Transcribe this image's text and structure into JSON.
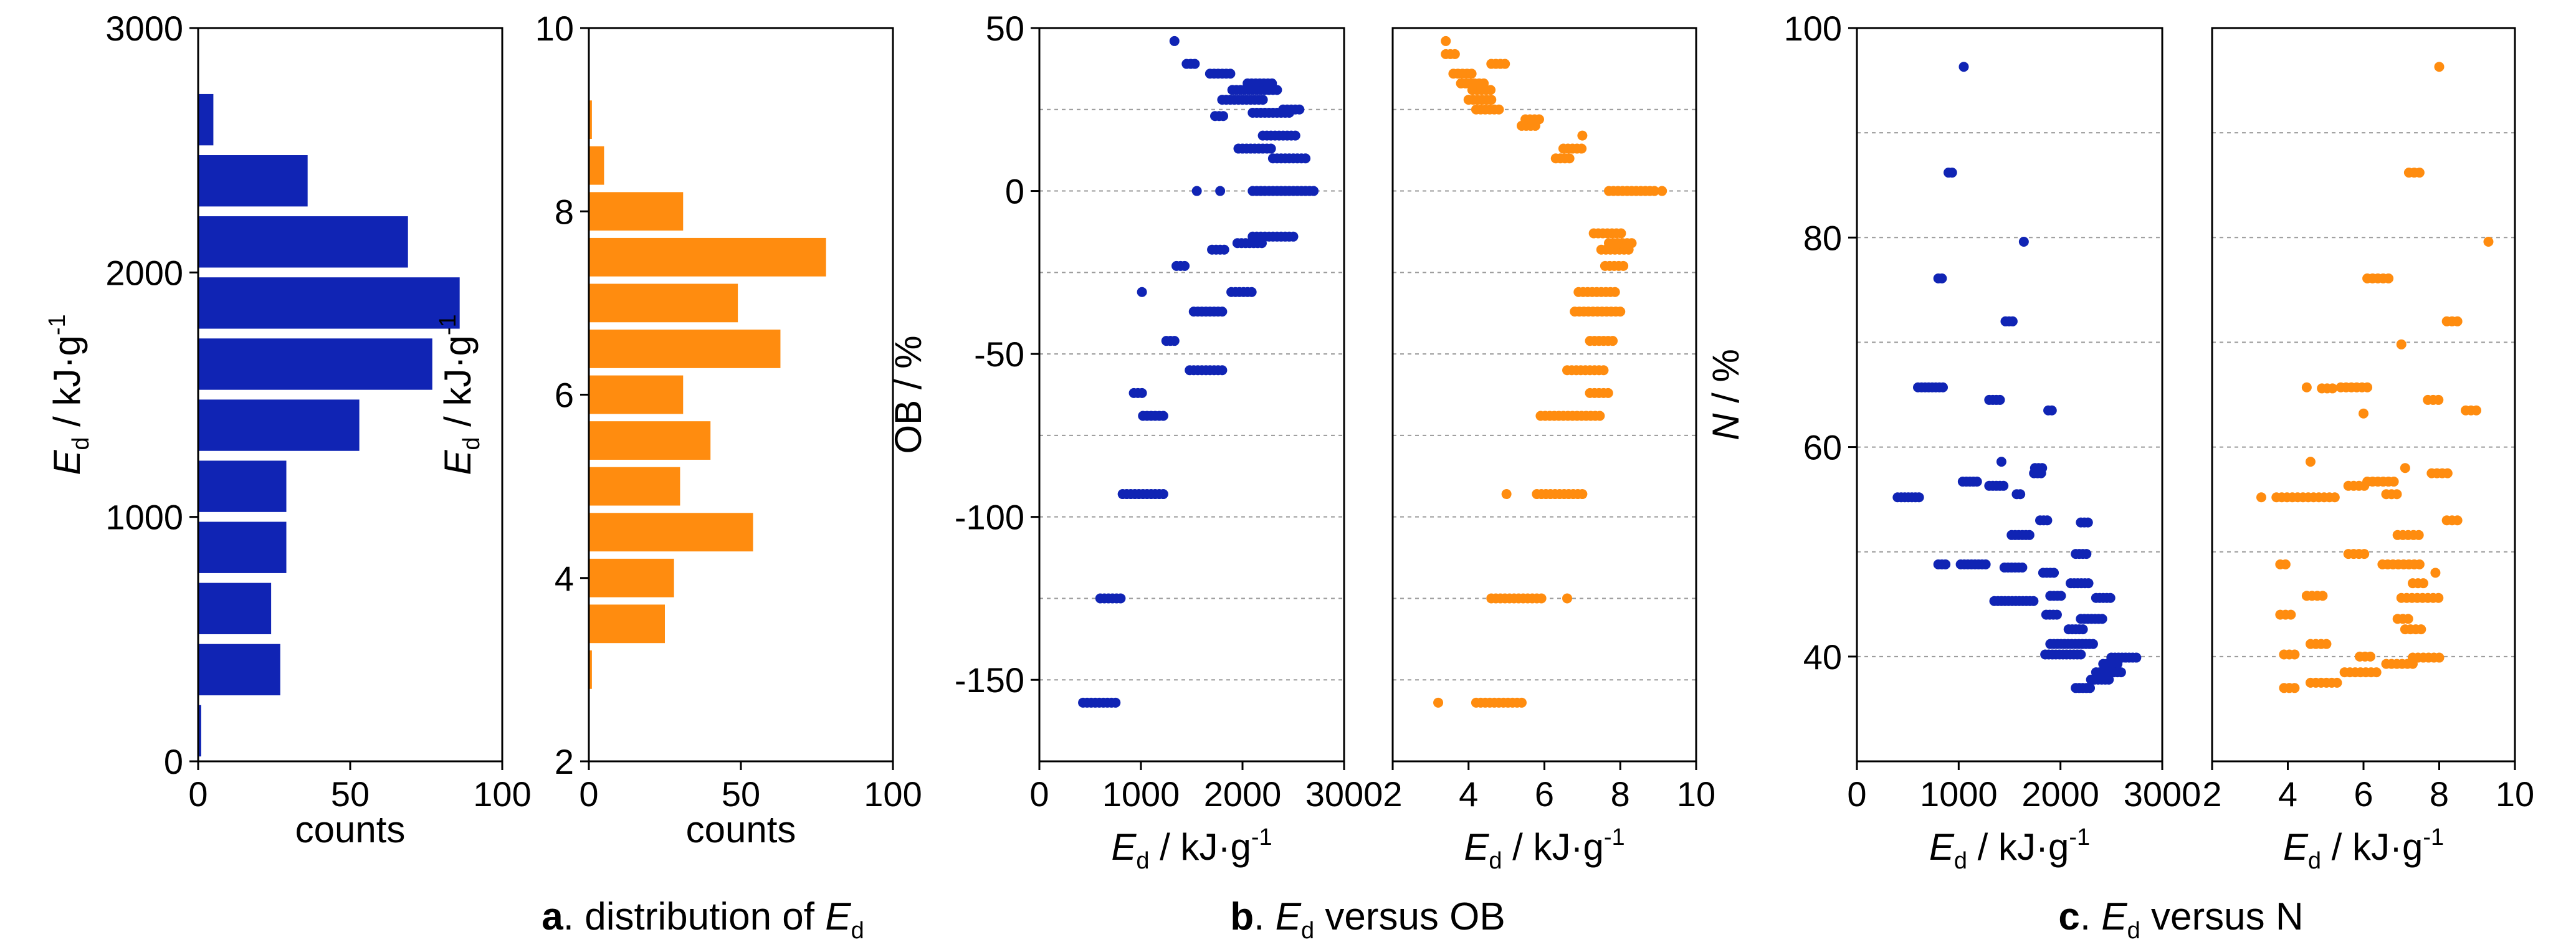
{
  "colors": {
    "blue": "#1024b4",
    "orange": "#ff8c0f"
  },
  "captions": [
    {
      "letter": "a",
      "text": ". distribution of ",
      "sym": "E",
      "sub": "d",
      "tail": ""
    },
    {
      "letter": "b",
      "text": ". ",
      "sym": "E",
      "sub": "d",
      "tail": " versus OB"
    },
    {
      "letter": "c",
      "text": ". ",
      "sym": "E",
      "sub": "d",
      "tail": " versus N"
    }
  ],
  "chart_data": [
    {
      "id": "a1",
      "type": "bar",
      "orientation": "horizontal",
      "color": "blue",
      "ylim": [
        0,
        3000
      ],
      "yticks": [
        "0",
        "1000",
        "2000",
        "3000"
      ],
      "yticks_v": [
        0,
        1000,
        2000,
        3000
      ],
      "xlim": [
        0,
        100
      ],
      "xticks": [
        "0",
        "50",
        "100"
      ],
      "xticks_v": [
        0,
        50,
        100
      ],
      "xlabel": "counts",
      "ylabel": {
        "sym": "E",
        "sub": "d",
        "text": " / kJ·g",
        "sup": "-1"
      },
      "bin_width": 250,
      "bins": [
        125,
        375,
        625,
        875,
        1125,
        1375,
        1625,
        1875,
        2125,
        2375,
        2625,
        2875
      ],
      "values": [
        1,
        27,
        24,
        29,
        29,
        53,
        77,
        86,
        69,
        36,
        5,
        0
      ]
    },
    {
      "id": "a2",
      "type": "bar",
      "orientation": "horizontal",
      "color": "orange",
      "ylim": [
        2,
        10
      ],
      "yticks": [
        "2",
        "4",
        "6",
        "8",
        "10"
      ],
      "yticks_v": [
        2,
        4,
        6,
        8,
        10
      ],
      "xlim": [
        0,
        100
      ],
      "xticks": [
        "0",
        "50",
        "100"
      ],
      "xticks_v": [
        0,
        50,
        100
      ],
      "xlabel": "counts",
      "ylabel": {
        "sym": "E",
        "sub": "d",
        "text": " / kJ·g",
        "sup": "-1"
      },
      "bin_width": 0.5,
      "bins": [
        3.0,
        3.5,
        4.0,
        4.5,
        5.0,
        5.5,
        6.0,
        6.5,
        7.0,
        7.5,
        8.0,
        8.5,
        9.0
      ],
      "values": [
        1,
        25,
        28,
        54,
        30,
        40,
        31,
        63,
        49,
        78,
        31,
        5,
        1
      ]
    },
    {
      "id": "b1",
      "type": "scatter",
      "color": "blue",
      "xlim": [
        0,
        3000
      ],
      "xticks": [
        "0",
        "1000",
        "2000",
        "3000"
      ],
      "xticks_v": [
        0,
        1000,
        2000,
        3000
      ],
      "ylim": [
        -175,
        50
      ],
      "yticks": [
        "-150",
        "-100",
        "-50",
        "0",
        "50"
      ],
      "yticks_v": [
        -150,
        -100,
        -50,
        0,
        50
      ],
      "grid_y": [
        -150,
        -125,
        -100,
        -75,
        -50,
        -25,
        0,
        25
      ],
      "xlabel": {
        "sym": "E",
        "sub": "d",
        "text": " / kJ·g",
        "sup": "-1"
      },
      "ylabel": "OB / %",
      "rows": [
        [
          -157,
          430,
          780
        ],
        [
          -125,
          600,
          820
        ],
        [
          -93,
          820,
          1220
        ],
        [
          -69,
          1020,
          1240
        ],
        [
          -62,
          930,
          1020
        ],
        [
          -55,
          1480,
          1800
        ],
        [
          -46,
          1250,
          1350
        ],
        [
          -37,
          1520,
          1800
        ],
        [
          -31,
          1890,
          2100
        ],
        [
          -31,
          1010,
          1010
        ],
        [
          -23,
          1350,
          1450
        ],
        [
          -18,
          1700,
          1820
        ],
        [
          -16,
          1950,
          2220
        ],
        [
          -14,
          2100,
          2500
        ],
        [
          0,
          1550,
          1550
        ],
        [
          0,
          1780,
          1780
        ],
        [
          0,
          2100,
          2700
        ],
        [
          10,
          2300,
          2650
        ],
        [
          13,
          1960,
          2300
        ],
        [
          17,
          2200,
          2520
        ],
        [
          23,
          1730,
          1830
        ],
        [
          24,
          2100,
          2480
        ],
        [
          25,
          2400,
          2580
        ],
        [
          28,
          1800,
          2200
        ],
        [
          31,
          1900,
          2340
        ],
        [
          33,
          2050,
          2300
        ],
        [
          36,
          1680,
          1880
        ],
        [
          39,
          1450,
          1550
        ],
        [
          46,
          1330,
          1330
        ]
      ],
      "step": 40
    },
    {
      "id": "b2",
      "type": "scatter",
      "color": "orange",
      "xlim": [
        2,
        10
      ],
      "xticks": [
        "2",
        "4",
        "6",
        "8",
        "10"
      ],
      "xticks_v": [
        2,
        4,
        6,
        8,
        10
      ],
      "ylim": [
        -175,
        50
      ],
      "grid_y": [
        -150,
        -125,
        -100,
        -75,
        -50,
        -25,
        0,
        25
      ],
      "xlabel": {
        "sym": "E",
        "sub": "d",
        "text": " / kJ·g",
        "sup": "-1"
      },
      "rows": [
        [
          -157,
          3.2,
          3.2
        ],
        [
          -157,
          4.2,
          5.4
        ],
        [
          -125,
          4.6,
          6.0
        ],
        [
          -125,
          6.6,
          6.6
        ],
        [
          -93,
          5.0,
          5.0
        ],
        [
          -93,
          5.8,
          7.0
        ],
        [
          -69,
          5.9,
          7.5
        ],
        [
          -62,
          7.2,
          7.7
        ],
        [
          -55,
          6.6,
          7.6
        ],
        [
          -46,
          7.2,
          7.8
        ],
        [
          -37,
          6.8,
          8.0
        ],
        [
          -31,
          6.9,
          7.9
        ],
        [
          -23,
          7.6,
          8.1
        ],
        [
          -18,
          7.5,
          8.3
        ],
        [
          -16,
          7.7,
          8.4
        ],
        [
          -13,
          7.3,
          8.1
        ],
        [
          0,
          7.7,
          9.0
        ],
        [
          0,
          9.1,
          9.1
        ],
        [
          10,
          6.3,
          6.7
        ],
        [
          13,
          6.5,
          7.0
        ],
        [
          17,
          7.0,
          7.0
        ],
        [
          20,
          5.4,
          5.8
        ],
        [
          22,
          5.5,
          5.9
        ],
        [
          25,
          4.2,
          4.8
        ],
        [
          28,
          4.0,
          4.7
        ],
        [
          31,
          4.1,
          4.6
        ],
        [
          33,
          3.8,
          4.4
        ],
        [
          36,
          3.6,
          4.1
        ],
        [
          39,
          4.6,
          5.0
        ],
        [
          42,
          3.4,
          3.7
        ],
        [
          46,
          3.4,
          3.4
        ]
      ],
      "step": 0.12
    },
    {
      "id": "c1",
      "type": "scatter",
      "color": "blue",
      "xlim": [
        0,
        3000
      ],
      "xticks": [
        "0",
        "1000",
        "2000",
        "3000"
      ],
      "xticks_v": [
        0,
        1000,
        2000,
        3000
      ],
      "ylim": [
        30,
        100
      ],
      "yticks": [
        "40",
        "60",
        "80",
        "100"
      ],
      "yticks_v": [
        40,
        60,
        80,
        100
      ],
      "grid_y": [
        40,
        50,
        60,
        70,
        80,
        90
      ],
      "xlabel": {
        "sym": "E",
        "sub": "d",
        "text": " / kJ·g",
        "sup": "-1"
      },
      "ylabel": {
        "sym": "N",
        "text": " / %"
      },
      "rows": [
        [
          96.3,
          1050,
          1050
        ],
        [
          86.2,
          900,
          960
        ],
        [
          79.6,
          1640,
          1640
        ],
        [
          76.1,
          800,
          860
        ],
        [
          72.0,
          1460,
          1530
        ],
        [
          65.7,
          600,
          860
        ],
        [
          64.5,
          1300,
          1420
        ],
        [
          63.5,
          1880,
          1930
        ],
        [
          58.6,
          1420,
          1420
        ],
        [
          58.0,
          1750,
          1820
        ],
        [
          57.5,
          1740,
          1820
        ],
        [
          56.7,
          1040,
          1200
        ],
        [
          56.3,
          1300,
          1450
        ],
        [
          55.2,
          400,
          640
        ],
        [
          55.5,
          1570,
          1620
        ],
        [
          53.0,
          1800,
          1900
        ],
        [
          52.8,
          2200,
          2300
        ],
        [
          51.6,
          1520,
          1720
        ],
        [
          49.8,
          2150,
          2270
        ],
        [
          48.8,
          800,
          900
        ],
        [
          48.8,
          1020,
          1280
        ],
        [
          48.5,
          1450,
          1640
        ],
        [
          48.0,
          1830,
          1950
        ],
        [
          47.0,
          2100,
          2300
        ],
        [
          45.8,
          1900,
          2020
        ],
        [
          45.6,
          2350,
          2500
        ],
        [
          45.3,
          1350,
          1750
        ],
        [
          44.0,
          1860,
          1970
        ],
        [
          43.6,
          2200,
          2420
        ],
        [
          42.6,
          2080,
          2250
        ],
        [
          41.2,
          1900,
          2350
        ],
        [
          40.2,
          1850,
          2200
        ],
        [
          39.9,
          2500,
          2750
        ],
        [
          39.3,
          2420,
          2560
        ],
        [
          38.5,
          2350,
          2600
        ],
        [
          37.8,
          2300,
          2500
        ],
        [
          37.0,
          2150,
          2300
        ]
      ],
      "step": 35
    },
    {
      "id": "c2",
      "type": "scatter",
      "color": "orange",
      "xlim": [
        2,
        10
      ],
      "xticks": [
        "2",
        "4",
        "6",
        "8",
        "10"
      ],
      "xticks_v": [
        2,
        4,
        6,
        8,
        10
      ],
      "ylim": [
        30,
        100
      ],
      "grid_y": [
        40,
        50,
        60,
        70,
        80,
        90
      ],
      "xlabel": {
        "sym": "E",
        "sub": "d",
        "text": " / kJ·g",
        "sup": "-1"
      },
      "rows": [
        [
          96.3,
          8.0,
          8.0
        ],
        [
          86.2,
          7.2,
          7.6
        ],
        [
          79.6,
          9.3,
          9.3
        ],
        [
          76.1,
          6.1,
          6.7
        ],
        [
          72.0,
          8.2,
          8.6
        ],
        [
          69.8,
          7.0,
          7.0
        ],
        [
          65.7,
          4.5,
          4.5
        ],
        [
          65.7,
          5.4,
          6.1
        ],
        [
          65.6,
          4.9,
          5.3
        ],
        [
          64.5,
          7.7,
          8.0
        ],
        [
          63.5,
          8.7,
          9.0
        ],
        [
          63.2,
          6.0,
          6.0
        ],
        [
          58.6,
          4.6,
          4.6
        ],
        [
          58.0,
          7.1,
          7.2
        ],
        [
          57.5,
          7.8,
          8.3
        ],
        [
          56.7,
          6.1,
          6.9
        ],
        [
          56.3,
          5.6,
          6.1
        ],
        [
          55.2,
          3.3,
          3.3
        ],
        [
          55.2,
          3.7,
          5.3
        ],
        [
          55.5,
          6.6,
          7.0
        ],
        [
          53.0,
          8.2,
          8.5
        ],
        [
          51.6,
          6.9,
          7.5
        ],
        [
          49.8,
          5.6,
          6.1
        ],
        [
          48.8,
          3.8,
          4.0
        ],
        [
          48.8,
          6.5,
          7.6
        ],
        [
          48.0,
          7.9,
          8.0
        ],
        [
          47.0,
          7.3,
          7.6
        ],
        [
          45.8,
          4.5,
          5.0
        ],
        [
          45.6,
          7.0,
          8.0
        ],
        [
          44.0,
          3.8,
          4.1
        ],
        [
          43.6,
          6.9,
          7.2
        ],
        [
          42.6,
          7.1,
          7.6
        ],
        [
          41.2,
          4.6,
          5.1
        ],
        [
          40.2,
          3.9,
          4.2
        ],
        [
          40.0,
          5.9,
          6.2
        ],
        [
          39.9,
          7.3,
          8.0
        ],
        [
          39.3,
          6.6,
          7.4
        ],
        [
          38.5,
          5.5,
          6.4
        ],
        [
          37.5,
          4.6,
          5.4
        ],
        [
          37.0,
          3.9,
          4.2
        ]
      ],
      "step": 0.14
    }
  ]
}
